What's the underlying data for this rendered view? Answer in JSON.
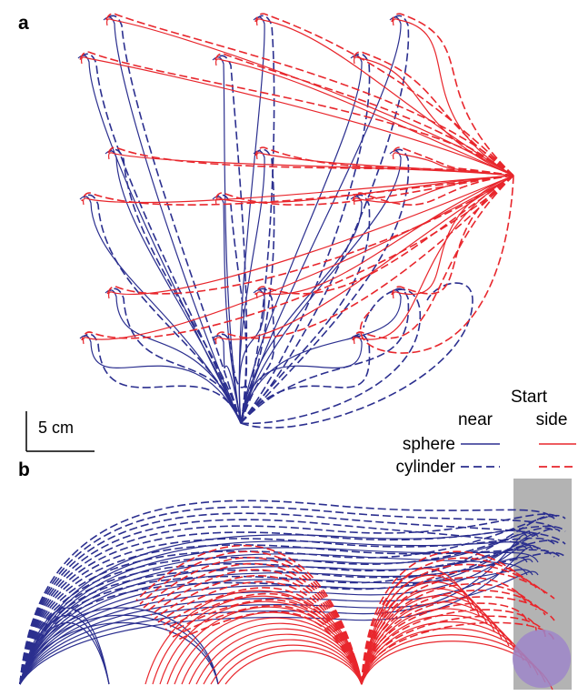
{
  "panels": {
    "a": {
      "label": "a"
    },
    "b": {
      "label": "b"
    }
  },
  "scale_bar": {
    "label": "5 cm"
  },
  "legend": {
    "header": "Start",
    "col_near": "near",
    "col_side": "side",
    "row_sphere": "sphere",
    "row_cylinder": "cylinder"
  },
  "colors": {
    "near": "#2b2f8f",
    "side": "#e8262c",
    "obstacle": "#b3b3b3",
    "object": "#9d86c9"
  }
}
